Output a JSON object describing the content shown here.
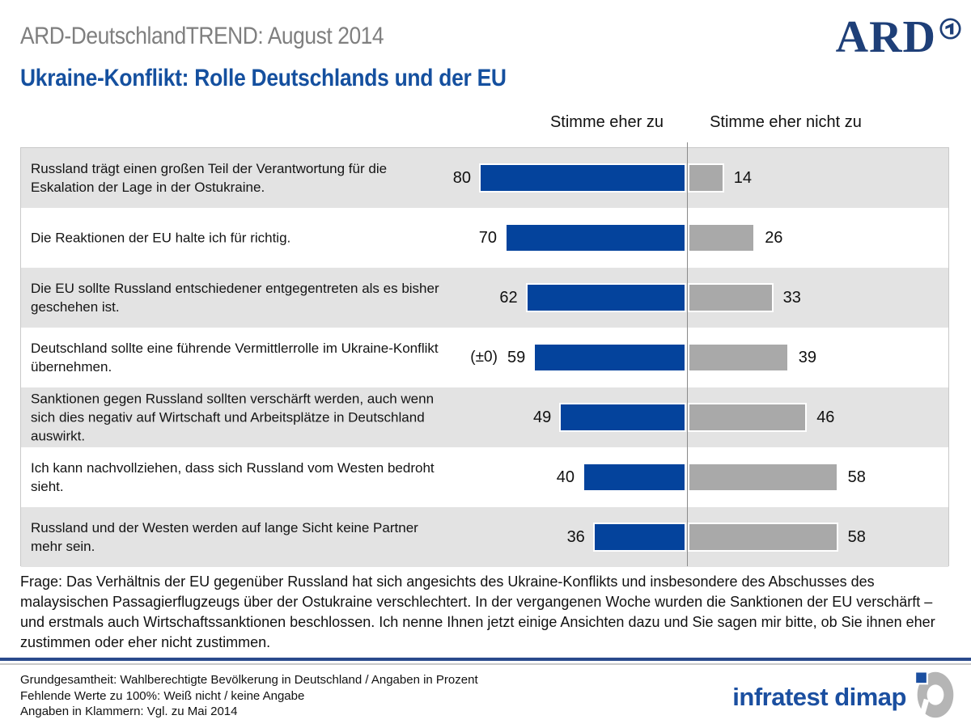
{
  "header": {
    "suptitle": "ARD-DeutschlandTREND: August 2014",
    "title": "Ukraine-Konflikt: Rolle Deutschlands und der EU",
    "ard_logo_text": "ARD"
  },
  "chart_data": {
    "type": "bar",
    "orientation": "horizontal_diverging",
    "title": "Ukraine-Konflikt: Rolle Deutschlands und der EU",
    "subtitle": "ARD-DeutschlandTREND: August 2014",
    "unit": "percent",
    "categories": [
      "Russland trägt einen großen Teil der Verantwortung für die Eskalation der Lage in der Ostukraine.",
      "Die Reaktionen der EU halte ich für richtig.",
      "Die EU sollte Russland entschiedener entgegentreten als es bisher geschehen ist.",
      "Deutschland sollte eine führende Vermittlerrolle im Ukraine-Konflikt übernehmen.",
      "Sanktionen gegen Russland sollten verschärft werden, auch wenn sich dies negativ auf Wirtschaft und Arbeitsplätze in Deutschland auswirkt.",
      "Ich kann nachvollziehen, dass sich Russland vom Westen bedroht sieht.",
      "Russland und der Westen werden auf lange Sicht keine Partner mehr sein."
    ],
    "series": [
      {
        "name": "Stimme eher zu",
        "color": "#04439c",
        "values": [
          80,
          70,
          62,
          59,
          49,
          40,
          36
        ]
      },
      {
        "name": "Stimme eher nicht zu",
        "color": "#a9a9a9",
        "values": [
          14,
          26,
          33,
          39,
          46,
          58,
          58
        ]
      }
    ],
    "notes": [
      "",
      "",
      "",
      "(±0)",
      "",
      "",
      ""
    ],
    "row_colors_alternate": [
      "#e3e3e3",
      "#ffffff"
    ],
    "legend_position": "top",
    "grid": false
  },
  "footer": {
    "question": "Frage: Das Verhältnis der EU gegenüber Russland hat sich angesichts des Ukraine-Konflikts und insbesondere des Abschusses des malaysischen Passagierflugzeugs über der Ostukraine verschlechtert. In der vergangenen Woche wurden die Sanktionen der EU verschärft – und erstmals auch Wirtschaftssanktionen beschlossen. Ich nenne Ihnen jetzt einige Ansichten dazu und Sie sagen mir bitte, ob Sie ihnen eher zustimmen oder eher nicht zustimmen.",
    "notes": [
      "Grundgesamtheit: Wahlberechtigte Bevölkerung in Deutschland / Angaben in Prozent",
      "Fehlende Werte zu 100%: Weiß nicht / keine Angabe",
      "Angaben in Klammern: Vgl. zu Mai 2014"
    ],
    "brand": "infratest dimap"
  },
  "colors": {
    "title_blue": "#15509f",
    "bar_blue": "#04439c",
    "bar_gray": "#a9a9a9",
    "ard_navy": "#1e3f78",
    "separator_blue": "#2a4a8c",
    "infratest_blue": "#1b4fa0"
  }
}
